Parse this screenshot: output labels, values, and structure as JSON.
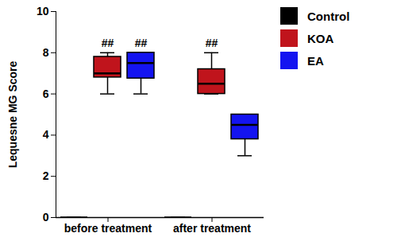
{
  "chart_data": {
    "type": "box",
    "y_label": "Lequesne MG Score",
    "categories": [
      "before treatment",
      "after treatment"
    ],
    "series": [
      {
        "name": "Control",
        "color": "#000000",
        "values": [
          {
            "min": 0,
            "q1": 0,
            "median": 0,
            "q3": 0,
            "max": 0
          },
          {
            "min": 0,
            "q1": 0,
            "median": 0,
            "q3": 0,
            "max": 0
          }
        ]
      },
      {
        "name": "KOA",
        "color": "#c0141c",
        "values": [
          {
            "min": 6,
            "q1": 6.8,
            "median": 7,
            "q3": 7.8,
            "max": 8
          },
          {
            "min": 6,
            "q1": 6,
            "median": 6.5,
            "q3": 7.2,
            "max": 8
          }
        ]
      },
      {
        "name": "EA",
        "color": "#1414f0",
        "values": [
          {
            "min": 6,
            "q1": 6.75,
            "median": 7.5,
            "q3": 8,
            "max": 8
          },
          {
            "min": 3,
            "q1": 3.8,
            "median": 4.5,
            "q3": 5,
            "max": 5
          }
        ]
      }
    ],
    "annotations": [
      {
        "category": "before treatment",
        "series": "KOA",
        "text": "##"
      },
      {
        "category": "before treatment",
        "series": "EA",
        "text": "##"
      },
      {
        "category": "after treatment",
        "series": "KOA",
        "text": "##"
      }
    ],
    "ylim": [
      0,
      10
    ],
    "yticks": [
      0,
      2,
      4,
      6,
      8,
      10
    ],
    "legend": "right"
  }
}
